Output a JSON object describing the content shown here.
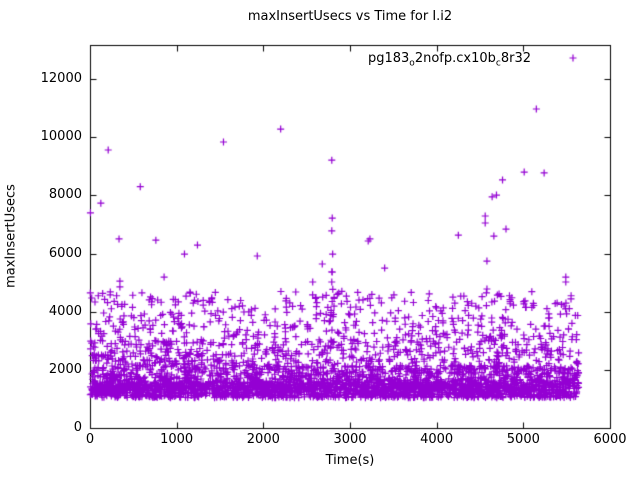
{
  "window": {
    "background": "#ffffff",
    "text_color": "#000000"
  },
  "chart_data": {
    "type": "scatter",
    "title": "maxInsertUsecs vs Time for I.i2",
    "xlabel": "Time(s)",
    "ylabel": "maxInsertUsecs",
    "xlim": [
      0,
      6000
    ],
    "ylim": [
      0,
      13170
    ],
    "xticks": [
      0,
      1000,
      2000,
      3000,
      4000,
      5000,
      6000
    ],
    "yticks": [
      0,
      2000,
      4000,
      6000,
      8000,
      10000,
      12000
    ],
    "grid": false,
    "axis_color": "#000000",
    "tick_length": 6,
    "legend": {
      "position": "top-right-inside",
      "label_plain": "pg183_o2nofp.cx10b_c8r32",
      "label_parts": [
        {
          "text": "pg183"
        },
        {
          "sub": "o"
        },
        {
          "text": "2nofp.cx10b"
        },
        {
          "sub": "c"
        },
        {
          "text": "8r32"
        }
      ]
    },
    "marker": {
      "shape": "plus",
      "color": "#9400D3",
      "size": 7,
      "line_width": 1.2
    },
    "series": [
      {
        "name": "pg183_o2nofp.cx10b_c8r32",
        "outliers": [
          [
            5,
            7400
          ],
          [
            20,
            4470
          ],
          [
            125,
            7730
          ],
          [
            210,
            9560
          ],
          [
            335,
            6500
          ],
          [
            345,
            5050
          ],
          [
            345,
            4850
          ],
          [
            580,
            8300
          ],
          [
            760,
            6460
          ],
          [
            855,
            5190
          ],
          [
            1090,
            5980
          ],
          [
            1240,
            6290
          ],
          [
            1540,
            9835
          ],
          [
            1930,
            5915
          ],
          [
            2200,
            10280
          ],
          [
            2570,
            5020
          ],
          [
            2680,
            5640
          ],
          [
            2790,
            9210
          ],
          [
            2795,
            7220
          ],
          [
            2790,
            6780
          ],
          [
            2800,
            5980
          ],
          [
            2790,
            5370
          ],
          [
            2795,
            5360
          ],
          [
            2790,
            5020
          ],
          [
            2870,
            4640
          ],
          [
            3210,
            6430
          ],
          [
            3230,
            6500
          ],
          [
            3400,
            5500
          ],
          [
            4250,
            6630
          ],
          [
            4560,
            7290
          ],
          [
            4560,
            7050
          ],
          [
            4580,
            5740
          ],
          [
            4580,
            4780
          ],
          [
            4640,
            7950
          ],
          [
            4660,
            6600
          ],
          [
            4690,
            8010
          ],
          [
            4700,
            4570
          ],
          [
            4720,
            4610
          ],
          [
            4760,
            8530
          ],
          [
            4800,
            6840
          ],
          [
            5010,
            8800
          ],
          [
            5020,
            4370
          ],
          [
            5150,
            10970
          ],
          [
            5240,
            8770
          ],
          [
            5390,
            4300
          ],
          [
            5440,
            4250
          ],
          [
            5490,
            5190
          ],
          [
            5490,
            5020
          ],
          [
            5550,
            4440
          ]
        ],
        "cloud": {
          "seed": 1337,
          "count": 3600,
          "t_range": [
            0,
            5640
          ],
          "bands": [
            {
              "y": [
                1040,
                1270
              ],
              "w": 0.2
            },
            {
              "y": [
                1270,
                1580
              ],
              "w": 0.34
            },
            {
              "y": [
                1580,
                2150
              ],
              "w": 0.22
            },
            {
              "y": [
                2150,
                3000
              ],
              "w": 0.12
            },
            {
              "y": [
                3000,
                3800
              ],
              "w": 0.075
            },
            {
              "y": [
                3800,
                4700
              ],
              "w": 0.045
            }
          ],
          "clusters": [
            {
              "t": [
                2765,
                2815
              ],
              "y": [
                1900,
                4900
              ],
              "count": 12
            },
            {
              "t": [
                0,
                70
              ],
              "y": [
                2300,
                4400
              ],
              "count": 10
            },
            {
              "t": [
                150,
                420
              ],
              "y": [
                3500,
                4800
              ],
              "count": 7
            },
            {
              "t": [
                4500,
                4850
              ],
              "y": [
                3000,
                4600
              ],
              "count": 8
            },
            {
              "t": [
                5350,
                5600
              ],
              "y": [
                3200,
                4300
              ],
              "count": 6
            }
          ]
        }
      }
    ]
  }
}
